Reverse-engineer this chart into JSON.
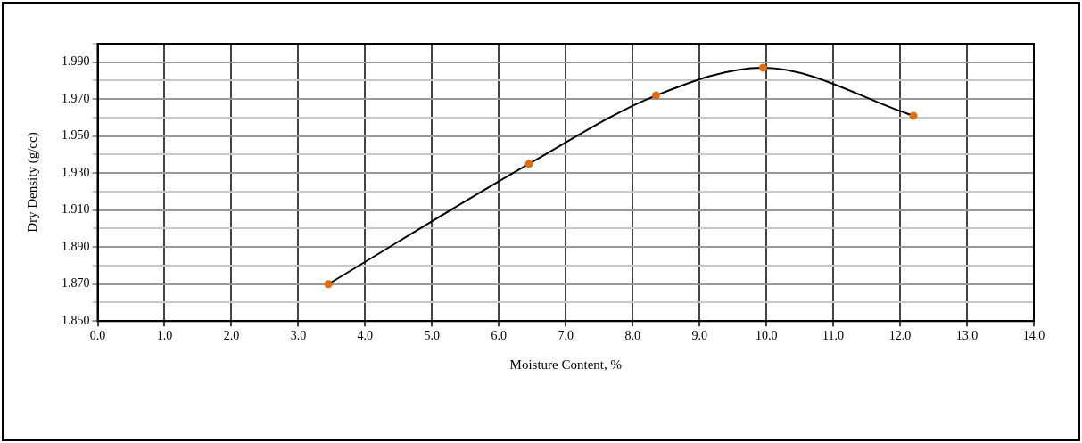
{
  "chart_data": {
    "type": "line",
    "xlabel": "Moisture Content, %",
    "ylabel": "Dry Density (g/cc)",
    "x": [
      3.45,
      6.45,
      8.35,
      9.95,
      12.2
    ],
    "series": [
      {
        "color": "#000000",
        "values": [
          1.87,
          1.935,
          1.972,
          1.987,
          1.961
        ]
      }
    ],
    "marker": "circle",
    "line_style": "solid",
    "grid": true,
    "legend": false,
    "xlim": [
      0,
      14
    ],
    "xticks": [
      {
        "value": 0,
        "label": "0.0"
      },
      {
        "value": 1,
        "label": "1.0"
      },
      {
        "value": 2,
        "label": "2.0"
      },
      {
        "value": 3,
        "label": "3.0"
      },
      {
        "value": 4,
        "label": "4.0"
      },
      {
        "value": 5,
        "label": "5.0"
      },
      {
        "value": 6,
        "label": "6.0"
      },
      {
        "value": 7,
        "label": "7.0"
      },
      {
        "value": 8,
        "label": "8.0"
      },
      {
        "value": 9,
        "label": "9.0"
      },
      {
        "value": 10,
        "label": "10.0"
      },
      {
        "value": 11,
        "label": "11.0"
      },
      {
        "value": 12,
        "label": "12.0"
      },
      {
        "value": 13,
        "label": "13.0"
      },
      {
        "value": 14,
        "label": "14.0"
      }
    ],
    "ylim": [
      1.85,
      2.0
    ],
    "yticks": [
      {
        "value": 1.85,
        "label": "1.850"
      },
      {
        "value": 1.86,
        "label": null
      },
      {
        "value": 1.87,
        "label": "1.870"
      },
      {
        "value": 1.88,
        "label": null
      },
      {
        "value": 1.89,
        "label": "1.890"
      },
      {
        "value": 1.9,
        "label": null
      },
      {
        "value": 1.91,
        "label": "1.910"
      },
      {
        "value": 1.92,
        "label": null
      },
      {
        "value": 1.93,
        "label": "1.930"
      },
      {
        "value": 1.94,
        "label": null
      },
      {
        "value": 1.95,
        "label": "1.950"
      },
      {
        "value": 1.96,
        "label": null
      },
      {
        "value": 1.97,
        "label": "1.970"
      },
      {
        "value": 1.98,
        "label": null
      },
      {
        "value": 1.99,
        "label": "1.990"
      },
      {
        "value": 2.0,
        "label": null
      }
    ]
  }
}
